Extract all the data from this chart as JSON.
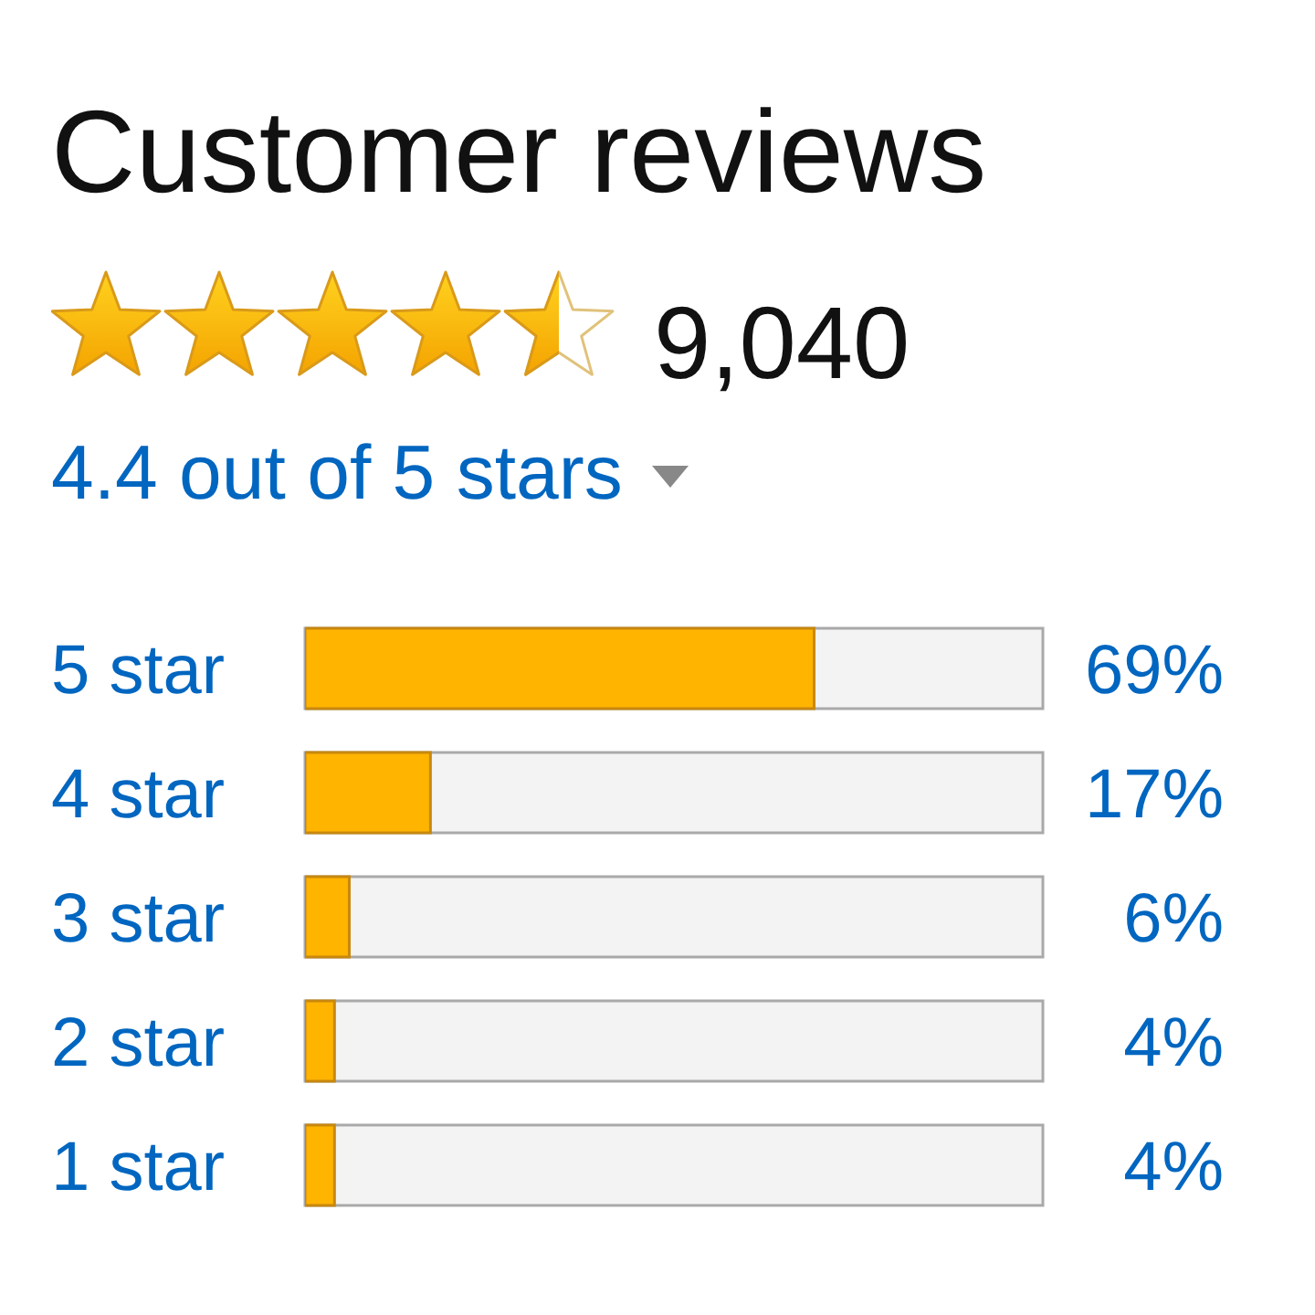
{
  "chart_data": {
    "type": "bar",
    "orientation": "horizontal",
    "title": "Customer reviews",
    "subtitle": "4.4 out of 5 stars",
    "annotations": [
      "9,040"
    ],
    "categories": [
      "5 star",
      "4 star",
      "3 star",
      "2 star",
      "1 star"
    ],
    "values": [
      69,
      17,
      6,
      4,
      4
    ],
    "value_labels": [
      "69%",
      "17%",
      "6%",
      "4%",
      "4%"
    ],
    "color": "#ffb400",
    "xlim": [
      0,
      100
    ],
    "tick_labels": "y"
  }
}
